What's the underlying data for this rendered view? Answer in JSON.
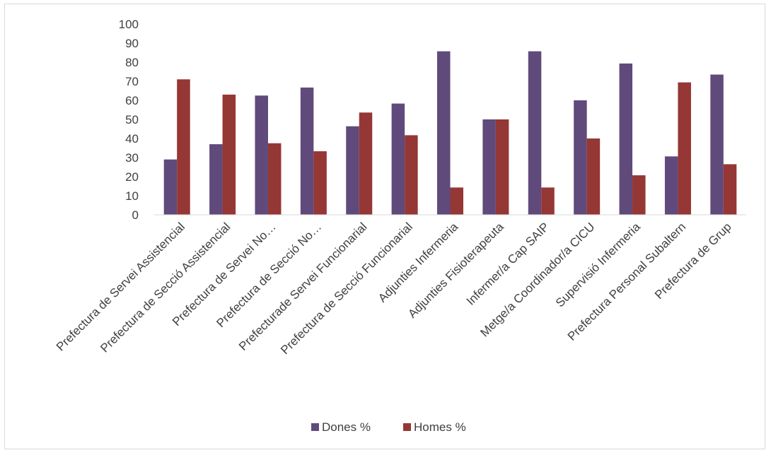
{
  "chart_data": {
    "type": "bar",
    "title": "",
    "xlabel": "",
    "ylabel": "",
    "ylim": [
      0,
      100
    ],
    "ytick_step": 10,
    "grid": false,
    "legend_position": "bottom",
    "categories": [
      "Prefectura de Servei Assistencial",
      "Prefectura de Secció Assistencial",
      "Prefectura de Servei No…",
      "Prefectura de Secció No…",
      "Prefecturade Servei Funcionarial",
      "Prefectura de Secció Funcionarial",
      "Adjunties Infermeria",
      "Adjunties Fisioterapeuta",
      "Infermer/a Cap SAIP",
      "Metge/a Coordinador/a CICU",
      "Supervisió Infermeria",
      "Prefectura Personal Subaltern",
      "Prefectura de Grup"
    ],
    "series": [
      {
        "name": "Dones %",
        "color": "#604a7b",
        "values": [
          29,
          37,
          62.5,
          66.7,
          46.4,
          58.3,
          85.7,
          50,
          85.7,
          60,
          79.3,
          30.6,
          73.5
        ]
      },
      {
        "name": "Homes %",
        "color": "#953735",
        "values": [
          71,
          63,
          37.5,
          33.3,
          53.6,
          41.7,
          14.3,
          50,
          14.3,
          40,
          20.7,
          69.4,
          26.5
        ]
      }
    ]
  }
}
